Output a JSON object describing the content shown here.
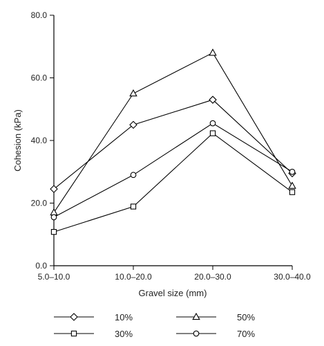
{
  "chart_data": {
    "type": "line",
    "categories": [
      "5.0–10.0",
      "10.0–20.0",
      "20.0–30.0",
      "30.0–40.0"
    ],
    "series": [
      {
        "name": "10%",
        "marker": "diamond",
        "values": [
          24.5,
          45.0,
          53.0,
          29.5
        ]
      },
      {
        "name": "30%",
        "marker": "square",
        "values": [
          10.8,
          18.9,
          42.3,
          23.5
        ]
      },
      {
        "name": "50%",
        "marker": "triangle",
        "values": [
          17.0,
          55.0,
          68.0,
          25.5
        ]
      },
      {
        "name": "70%",
        "marker": "circle",
        "values": [
          15.5,
          29.0,
          45.5,
          30.0
        ]
      }
    ],
    "xlabel": "Gravel size (mm)",
    "ylabel": "Cohesion (kPa)",
    "ylim": [
      0,
      80
    ],
    "yticks": [
      "0.0",
      "20.0",
      "40.0",
      "60.0",
      "80.0"
    ],
    "legend_position": "bottom",
    "grid": false
  }
}
